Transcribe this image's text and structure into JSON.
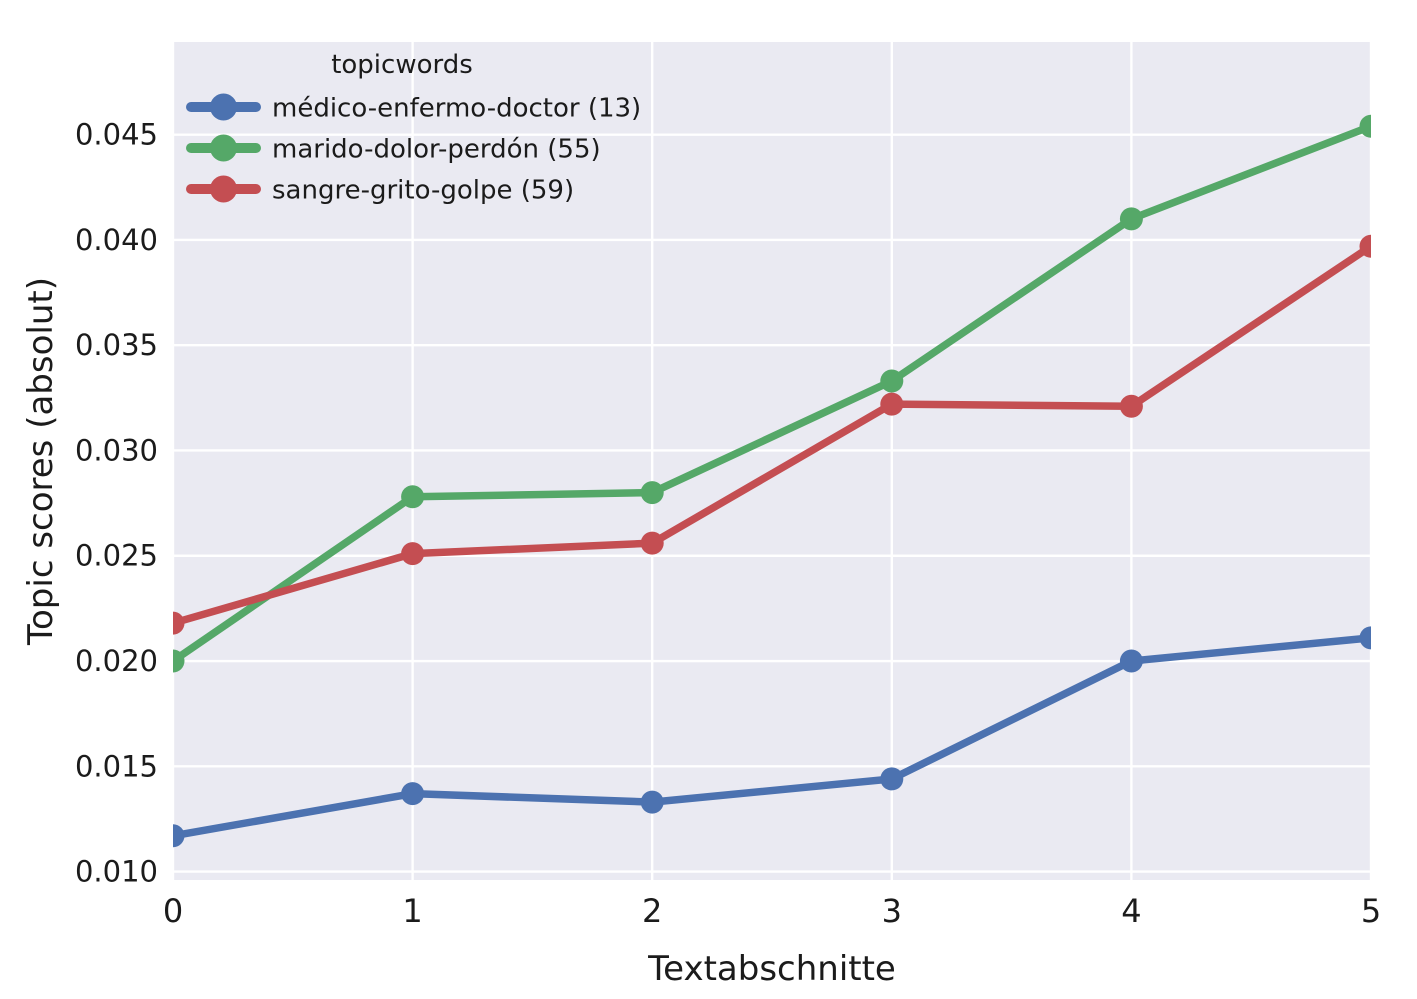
{
  "figure": {
    "background": "#ffffff",
    "plot_background": "#eaeaf2",
    "grid_color": "#ffffff",
    "text_color": "#1b1b1b"
  },
  "chart_data": {
    "type": "line",
    "title": "",
    "xlabel": "Textabschnitte",
    "ylabel": "Topic scores (absolut)",
    "x": [
      0,
      1,
      2,
      3,
      4,
      5
    ],
    "x_tick_labels": [
      "0",
      "1",
      "2",
      "3",
      "4",
      "5"
    ],
    "y_tick_values": [
      0.01,
      0.015,
      0.02,
      0.025,
      0.03,
      0.035,
      0.04,
      0.045
    ],
    "y_tick_labels": [
      "0.010",
      "0.015",
      "0.020",
      "0.025",
      "0.030",
      "0.035",
      "0.040",
      "0.045"
    ],
    "xlim": [
      0,
      5
    ],
    "ylim": [
      0.0096,
      0.0494
    ],
    "grid": true,
    "legend": {
      "title": "topicwords",
      "position": "upper left"
    },
    "series": [
      {
        "name": "médico-enfermo-doctor (13)",
        "color": "#4c72b0",
        "values": [
          0.0117,
          0.0137,
          0.0133,
          0.0144,
          0.02,
          0.0211
        ]
      },
      {
        "name": "marido-dolor-perdón (55)",
        "color": "#55a868",
        "values": [
          0.02,
          0.0278,
          0.028,
          0.0333,
          0.041,
          0.0454
        ]
      },
      {
        "name": "sangre-grito-golpe (59)",
        "color": "#c44e52",
        "values": [
          0.0218,
          0.0251,
          0.0256,
          0.0322,
          0.0321,
          0.0397
        ]
      }
    ]
  }
}
